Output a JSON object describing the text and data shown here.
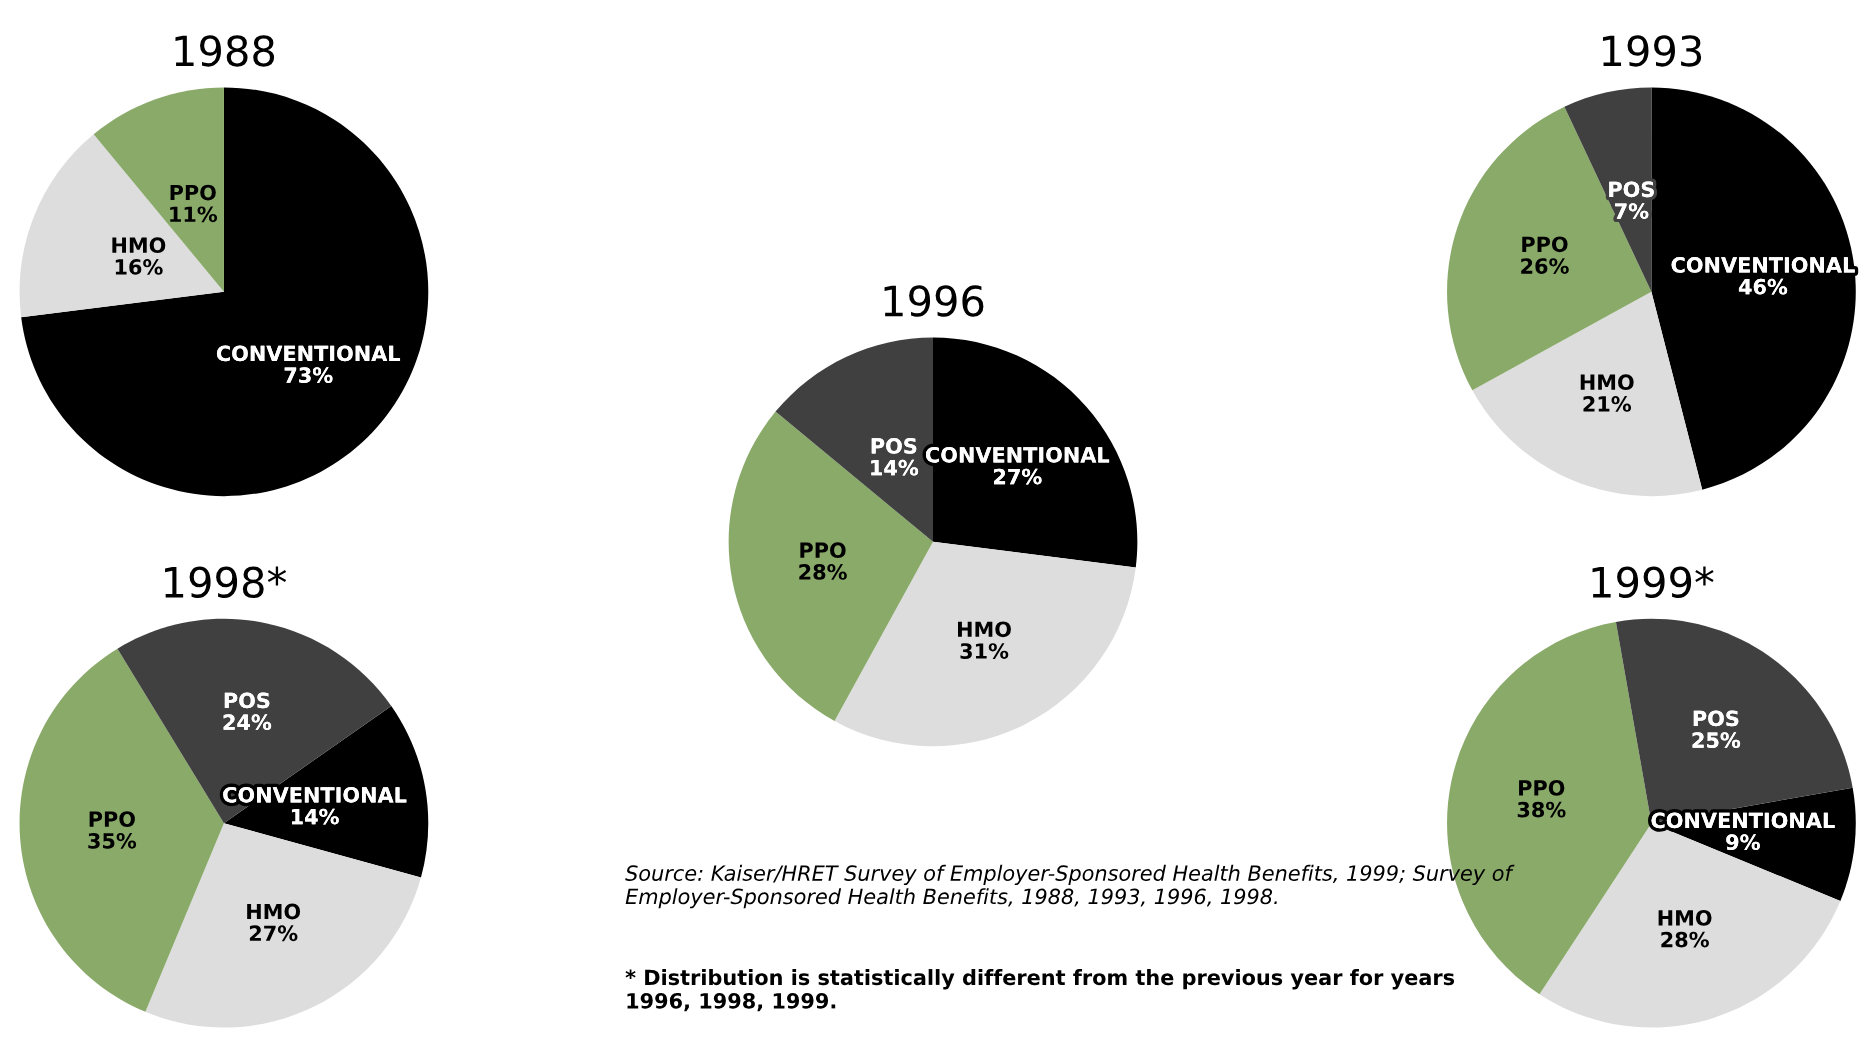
{
  "chart_data": [
    {
      "type": "pie",
      "title": "1988",
      "categories": [
        "CONVENTIONAL",
        "HMO",
        "PPO"
      ],
      "values": [
        73,
        16,
        11
      ],
      "colors": [
        "#000000",
        "#dddddd",
        "#8aaa6a"
      ],
      "value_labels": [
        "73%",
        "16%",
        "11%"
      ]
    },
    {
      "type": "pie",
      "title": "1993",
      "categories": [
        "CONVENTIONAL",
        "HMO",
        "PPO",
        "POS"
      ],
      "values": [
        46,
        21,
        26,
        7
      ],
      "colors": [
        "#000000",
        "#dddddd",
        "#8aaa6a",
        "#404040"
      ],
      "value_labels": [
        "46%",
        "21%",
        "26%",
        "7%"
      ]
    },
    {
      "type": "pie",
      "title": "1996",
      "categories": [
        "CONVENTIONAL",
        "HMO",
        "PPO",
        "POS"
      ],
      "values": [
        27,
        31,
        28,
        14
      ],
      "colors": [
        "#000000",
        "#dddddd",
        "#8aaa6a",
        "#404040"
      ],
      "value_labels": [
        "27%",
        "31%",
        "28%",
        "14%"
      ],
      "annotations": [
        "Source: Kaiser/HRET Survey of Employer-Sponsored Health Benefits, 1999; Survey of Employer-Sponsored Health Benefits, 1988, 1993, 1996, 1998.",
        "* Distribution is statistically different from the previous year for years 1996, 1998, 1999."
      ]
    },
    {
      "type": "pie",
      "title": "1998*",
      "categories": [
        "CONVENTIONAL",
        "HMO",
        "PPO",
        "POS"
      ],
      "values": [
        14,
        27,
        35,
        24
      ],
      "colors": [
        "#000000",
        "#dddddd",
        "#8aaa6a",
        "#404040"
      ],
      "value_labels": [
        "14%",
        "27%",
        "35%",
        "24%"
      ]
    },
    {
      "type": "pie",
      "title": "1999*",
      "categories": [
        "CONVENTIONAL",
        "HMO",
        "PPO",
        "POS"
      ],
      "values": [
        9,
        28,
        38,
        25
      ],
      "colors": [
        "#000000",
        "#dddddd",
        "#8aaa6a",
        "#404040"
      ],
      "value_labels": [
        "9%",
        "28%",
        "38%",
        "25%"
      ]
    }
  ]
}
